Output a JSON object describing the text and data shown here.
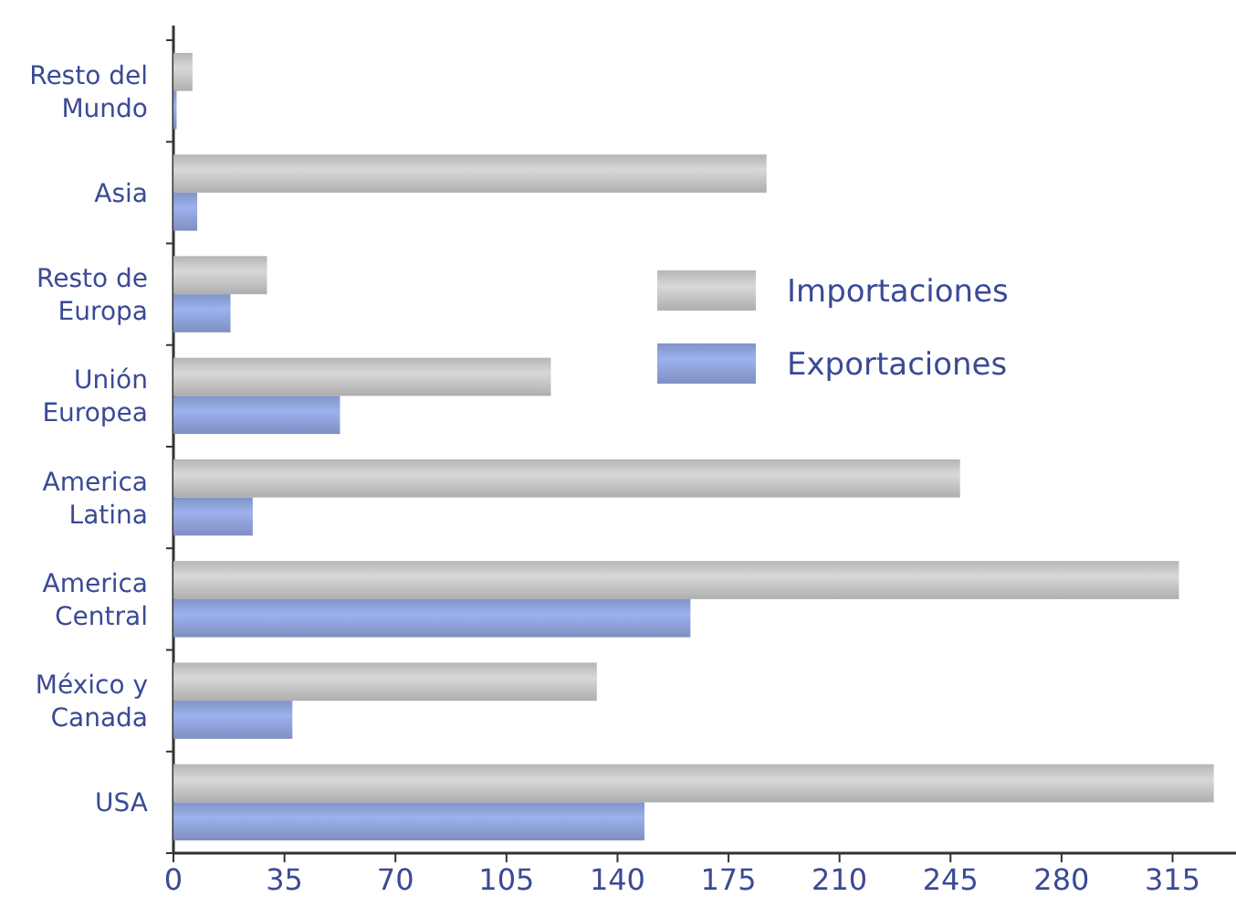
{
  "chart_data": {
    "type": "bar",
    "orientation": "horizontal",
    "categories": [
      "Resto del Mundo",
      "Asia",
      "Resto de Europa",
      "Unión Europea",
      "America Latina",
      "America Central",
      "México y Canada",
      "USA"
    ],
    "series": [
      {
        "name": "Importaciones",
        "color": "#c2c2c2",
        "values": [
          6,
          187,
          29.5,
          119,
          248,
          317,
          133.5,
          328
        ]
      },
      {
        "name": "Exportaciones",
        "color": "#8c9fd6",
        "values": [
          1,
          7.5,
          18,
          52.5,
          25,
          163,
          37.5,
          148.5
        ]
      }
    ],
    "xlim": [
      0,
      335
    ],
    "xticks": [
      0,
      35,
      70,
      105,
      140,
      175,
      210,
      245,
      280,
      315
    ],
    "grid": false,
    "legend": "right"
  }
}
